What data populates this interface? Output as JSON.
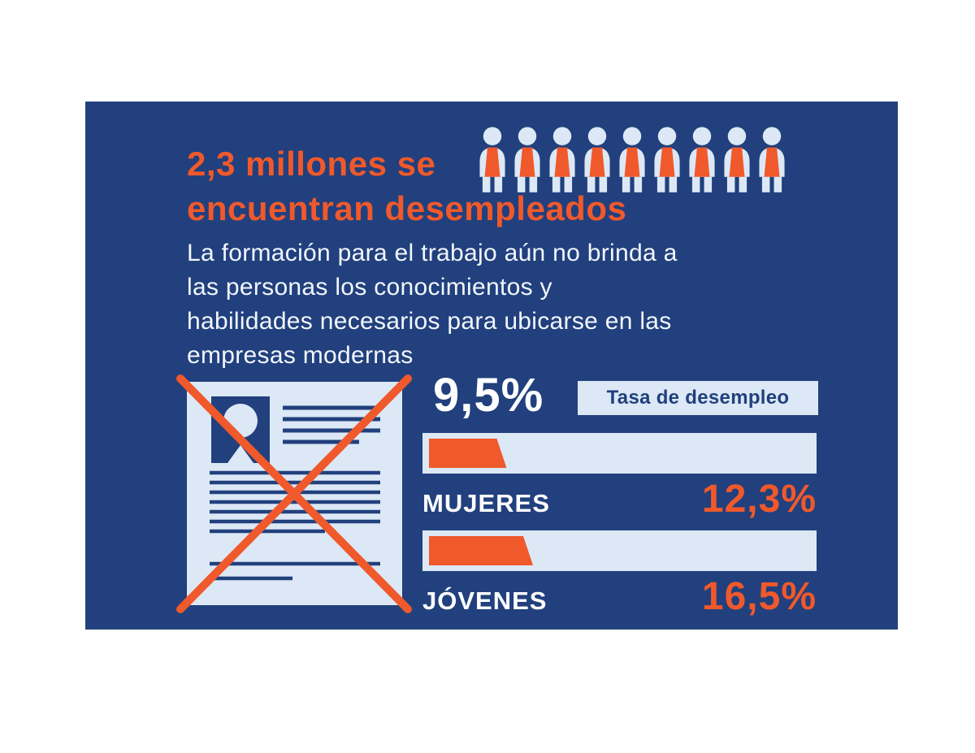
{
  "card": {
    "title_line1": "2,3 millones se",
    "title_line2": "encuentran desempleados",
    "subtitle_lines": [
      "La formación para el trabajo aún no brinda a",
      "las personas los conocimientos y",
      "habilidades necesarios para ubicarse en las",
      "empresas modernas"
    ],
    "people_icon_count": 9
  },
  "stats": {
    "rate_value": "9,5%",
    "rate_label": "Tasa de desempleo",
    "bars": [
      {
        "label": "MUJERES",
        "value_text": "12,3%",
        "value": 12.3
      },
      {
        "label": "JÓVENES",
        "value_text": "16,5%",
        "value": 16.5
      }
    ]
  },
  "colors": {
    "card_background": "#21407D",
    "accent_orange": "#F0592B",
    "light_blue": "#DCE8F5",
    "text_white": "#FFFFFF"
  },
  "chart_data": {
    "type": "bar",
    "title": "2,3 millones se encuentran desempleados",
    "subtitle": "La formación para el trabajo aún no brinda a las personas los conocimientos y habilidades necesarios para ubicarse en las empresas modernas",
    "categories": [
      "Tasa de desempleo",
      "MUJERES",
      "JÓVENES"
    ],
    "values": [
      9.5,
      12.3,
      16.5
    ],
    "unit": "%",
    "legend": "none",
    "orientation": "horizontal",
    "annotations": [
      "2,3 millones de desempleados",
      "9 person pictograms",
      "certificate crossed out"
    ]
  }
}
